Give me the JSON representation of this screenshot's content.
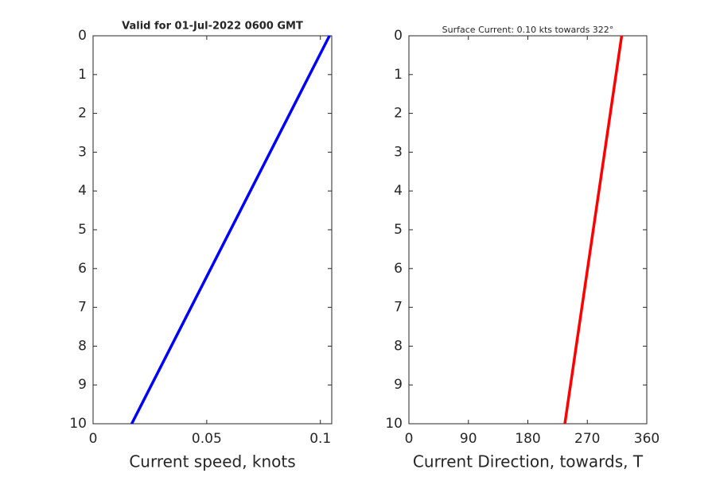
{
  "chart_data": [
    {
      "type": "line",
      "title": "Valid for 01-Jul-2022 0600 GMT",
      "x_label": "Current speed, knots",
      "x": [
        0.104,
        0.017
      ],
      "values": [
        0,
        10
      ],
      "color": "#0000ff",
      "xlim": [
        0,
        0.105
      ],
      "xticks": [
        0,
        0.05,
        0.1
      ],
      "ylim": [
        0,
        10
      ],
      "yticks": [
        0,
        1,
        2,
        3,
        4,
        5,
        6,
        7,
        8,
        9,
        10
      ],
      "y_reversed": true
    },
    {
      "type": "line",
      "title": "Surface Current: 0.10 kts towards 322°",
      "x_label": "Current Direction, towards, T",
      "x": [
        322,
        236
      ],
      "values": [
        0,
        10
      ],
      "color": "#ff0000",
      "xlim": [
        0,
        360
      ],
      "xticks": [
        0,
        90,
        180,
        270,
        360
      ],
      "ylim": [
        0,
        10
      ],
      "yticks": [
        0,
        1,
        2,
        3,
        4,
        5,
        6,
        7,
        8,
        9,
        10
      ],
      "y_reversed": true
    }
  ]
}
